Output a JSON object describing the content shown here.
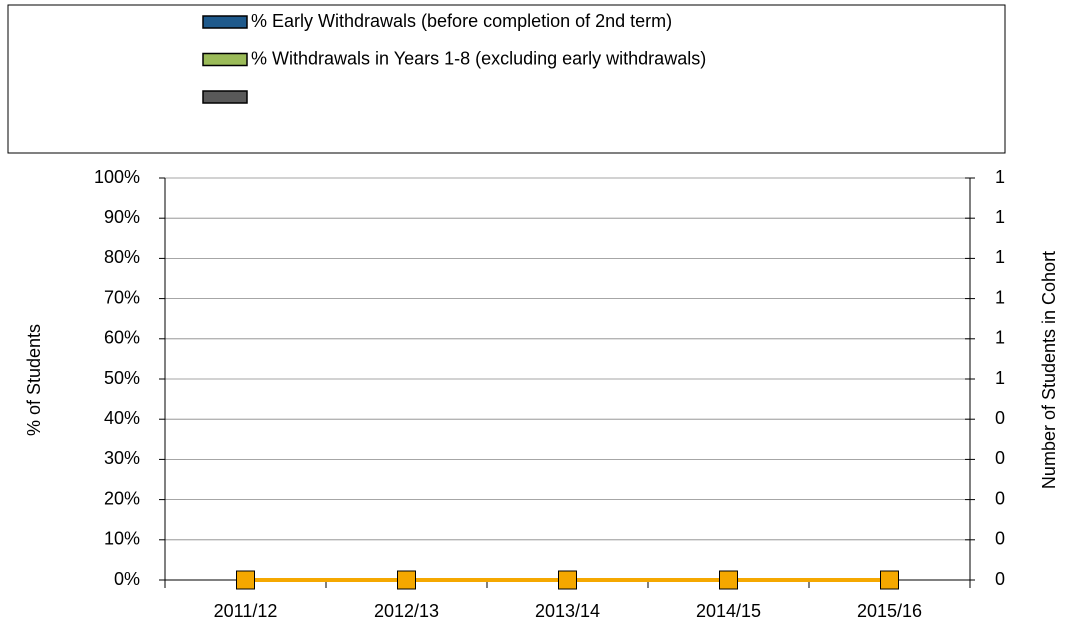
{
  "chart_data": {
    "type": "bar",
    "categories": [
      "2011/12",
      "2012/13",
      "2013/14",
      "2014/15",
      "2015/16"
    ],
    "series": [
      {
        "name": "% Early Withdrawals (before completion of 2nd term)",
        "color": "#1f5a8c",
        "values": [
          0,
          0,
          0,
          0,
          0
        ]
      },
      {
        "name": "% Withdrawals in Years 1-8 (excluding early withdrawals)",
        "color": "#9bbb59",
        "values": [
          0,
          0,
          0,
          0,
          0
        ]
      },
      {
        "color": "#595959",
        "values": [
          0,
          0,
          0,
          0,
          0
        ]
      },
      {
        "type": "line",
        "axis": "y2",
        "color": "#f5a800",
        "values": [
          0,
          0,
          0,
          0,
          0
        ]
      }
    ],
    "ylabel": "% of Students",
    "y2label": "Number of Students in Cohort",
    "ylim": [
      0,
      100
    ],
    "yticks": [
      {
        "value": 0,
        "label": "0%"
      },
      {
        "value": 10,
        "label": "10%"
      },
      {
        "value": 20,
        "label": "20%"
      },
      {
        "value": 30,
        "label": "30%"
      },
      {
        "value": 40,
        "label": "40%"
      },
      {
        "value": 50,
        "label": "50%"
      },
      {
        "value": 60,
        "label": "60%"
      },
      {
        "value": 70,
        "label": "70%"
      },
      {
        "value": 80,
        "label": "80%"
      },
      {
        "value": 90,
        "label": "90%"
      },
      {
        "value": 100,
        "label": "100%"
      }
    ],
    "y2lim": [
      0,
      1
    ],
    "y2ticks": [
      0,
      {
        "value": 0.1,
        "label": "0"
      },
      {
        "value": 0.2,
        "label": "0"
      },
      {
        "value": 0.3,
        "label": "0"
      },
      {
        "value": 0.4,
        "label": "0"
      },
      {
        "value": 0.5,
        "label": "1"
      },
      {
        "value": 0.6,
        "label": "1"
      },
      {
        "value": 0.7,
        "label": "1"
      },
      {
        "value": 0.8,
        "label": "1"
      },
      {
        "value": 0.9,
        "label": "1"
      },
      1
    ],
    "grid": true
  }
}
